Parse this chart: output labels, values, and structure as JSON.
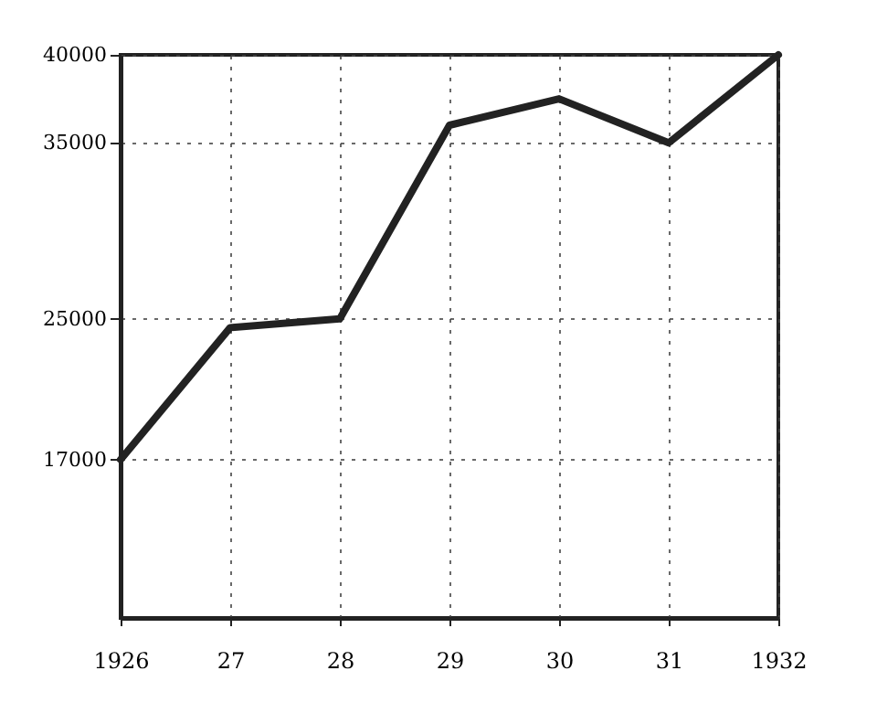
{
  "chart_data": {
    "type": "line",
    "x": [
      1926,
      1927,
      1928,
      1929,
      1930,
      1931,
      1932
    ],
    "series": [
      {
        "color": "#222222",
        "values": [
          17000,
          24500,
          25000,
          36000,
          37500,
          35000,
          40000
        ]
      }
    ],
    "xlim": [
      1926,
      1932
    ],
    "xticks": [
      {
        "value": 1926,
        "label": "1926"
      },
      {
        "value": 1927,
        "label": "27"
      },
      {
        "value": 1928,
        "label": "28"
      },
      {
        "value": 1929,
        "label": "29"
      },
      {
        "value": 1930,
        "label": "30"
      },
      {
        "value": 1931,
        "label": "31"
      },
      {
        "value": 1932,
        "label": "1932"
      }
    ],
    "ylim": [
      8000,
      40000
    ],
    "yticks": [
      17000,
      25000,
      35000,
      40000
    ],
    "grid": true,
    "marker": "none",
    "line_style": "solid"
  }
}
